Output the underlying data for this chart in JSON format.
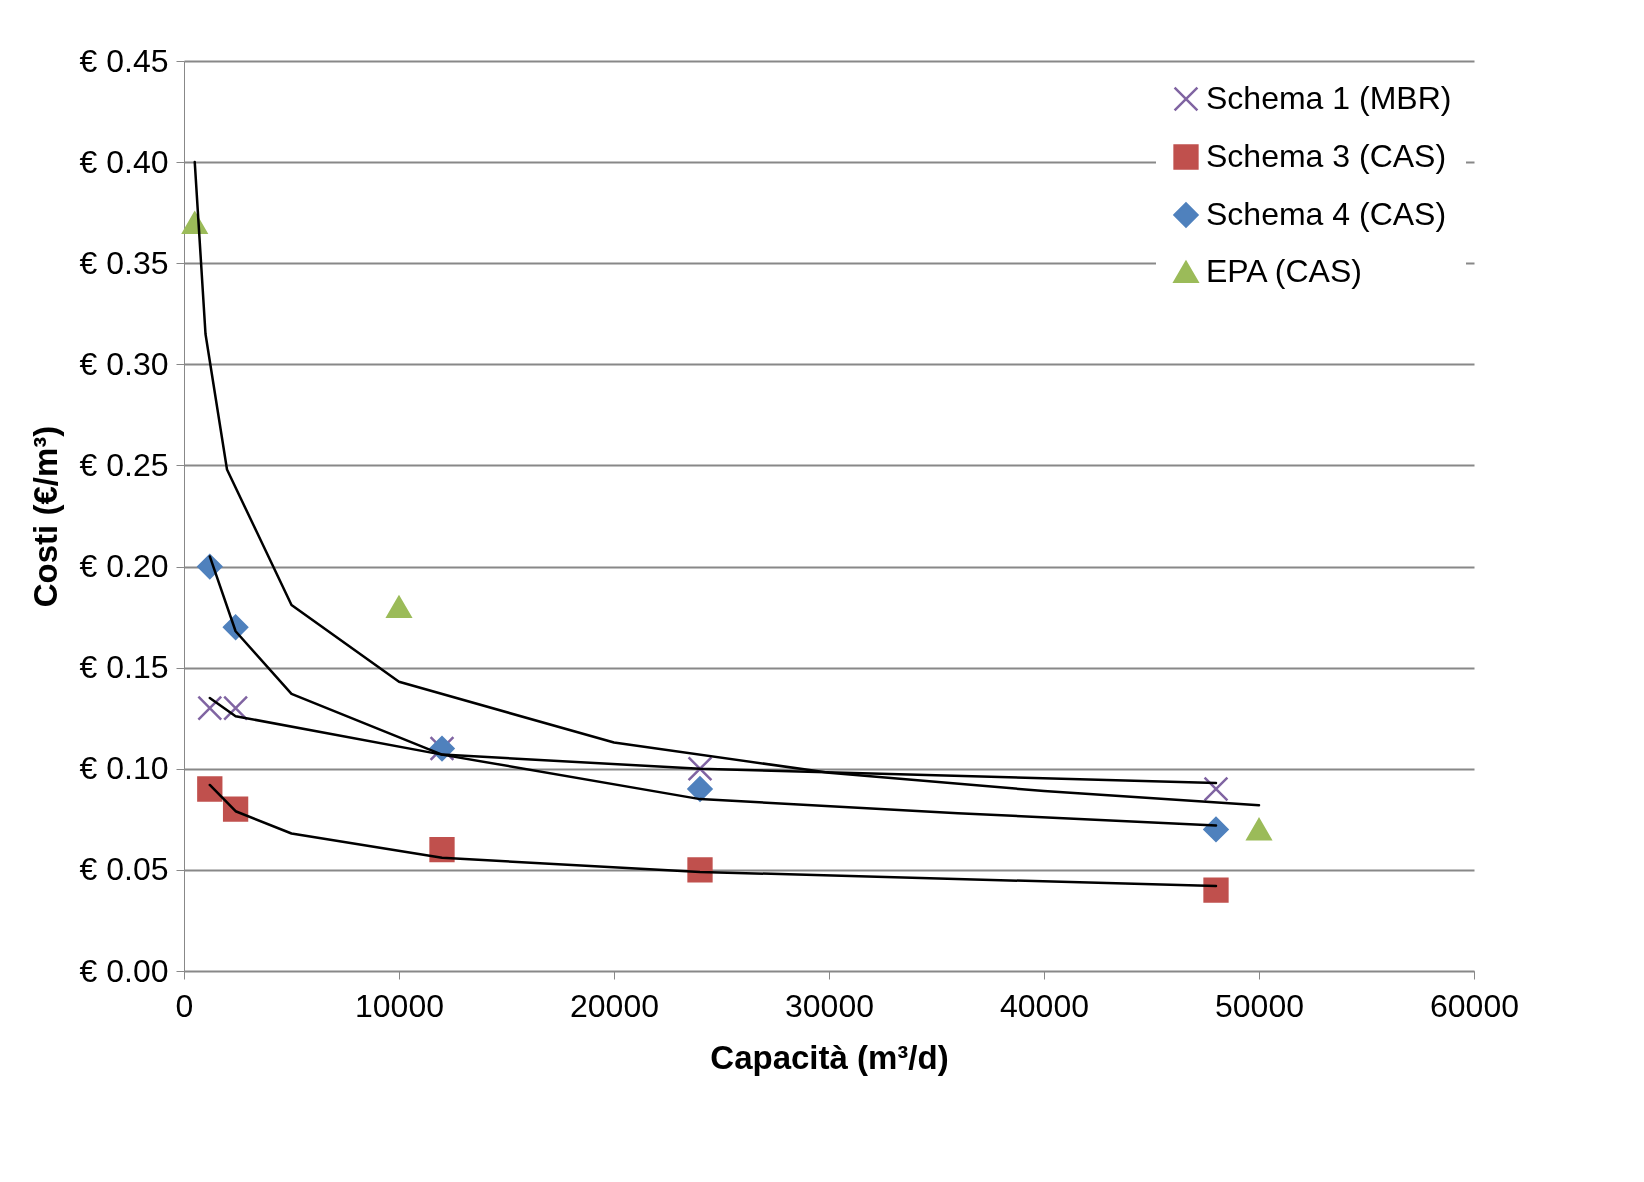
{
  "chart_data": {
    "type": "scatter",
    "xlabel": "Capacità (m³/d)",
    "ylabel": "Costi (€/m³)",
    "xlim": [
      0,
      60000
    ],
    "xticks": [
      0,
      10000,
      20000,
      30000,
      40000,
      50000,
      60000
    ],
    "ylim": [
      0,
      0.45
    ],
    "yticks": [
      {
        "value": 0,
        "label": "€ 0.00"
      },
      {
        "value": 0.05,
        "label": "€ 0.05"
      },
      {
        "value": 0.1,
        "label": "€ 0.10"
      },
      {
        "value": 0.15,
        "label": "€ 0.15"
      },
      {
        "value": 0.2,
        "label": "€ 0.20"
      },
      {
        "value": 0.25,
        "label": "€ 0.25"
      },
      {
        "value": 0.3,
        "label": "€ 0.30"
      },
      {
        "value": 0.35,
        "label": "€ 0.35"
      },
      {
        "value": 0.4,
        "label": "€ 0.40"
      },
      {
        "value": 0.45,
        "label": "€ 0.45"
      }
    ],
    "grid": "y",
    "legend": "top right",
    "series": [
      {
        "name": "Schema 1 (MBR)",
        "color": "#8064a2",
        "marker": "cross",
        "x": [
          1200,
          2400,
          12000,
          24000,
          48000
        ],
        "values": [
          0.13,
          0.13,
          0.11,
          0.1,
          0.09
        ]
      },
      {
        "name": "Schema 3 (CAS)",
        "color": "#c0504d",
        "marker": "square",
        "x": [
          1200,
          2400,
          12000,
          24000,
          48000
        ],
        "values": [
          0.09,
          0.08,
          0.06,
          0.05,
          0.04
        ]
      },
      {
        "name": "Schema 4 (CAS)",
        "color": "#4f81bd",
        "marker": "diamond",
        "x": [
          1200,
          2400,
          12000,
          24000,
          48000
        ],
        "values": [
          0.2,
          0.17,
          0.11,
          0.09,
          0.07
        ]
      },
      {
        "name": "EPA (CAS)",
        "color": "#9bbb59",
        "marker": "triangle",
        "x": [
          500,
          10000,
          50000
        ],
        "values": [
          0.37,
          0.18,
          0.07
        ]
      },
      {
        "type": "line",
        "color": "#000000",
        "x": [
          500,
          1000,
          2000,
          5000,
          10000,
          20000,
          30000,
          40000,
          50000
        ],
        "values": [
          0.4,
          0.315,
          0.248,
          0.181,
          0.143,
          0.113,
          0.098,
          0.089,
          0.082
        ]
      },
      {
        "type": "line",
        "color": "#000000",
        "x": [
          1200,
          2400,
          5000,
          12000,
          24000,
          36000,
          48000
        ],
        "values": [
          0.205,
          0.168,
          0.137,
          0.107,
          0.085,
          0.078,
          0.072
        ]
      },
      {
        "type": "line",
        "color": "#000000",
        "x": [
          1200,
          2400,
          12000,
          24000,
          48000
        ],
        "values": [
          0.135,
          0.126,
          0.107,
          0.1,
          0.093
        ]
      },
      {
        "type": "line",
        "color": "#000000",
        "x": [
          1200,
          2400,
          5000,
          12000,
          24000,
          48000
        ],
        "values": [
          0.092,
          0.079,
          0.068,
          0.056,
          0.049,
          0.042
        ]
      }
    ]
  }
}
